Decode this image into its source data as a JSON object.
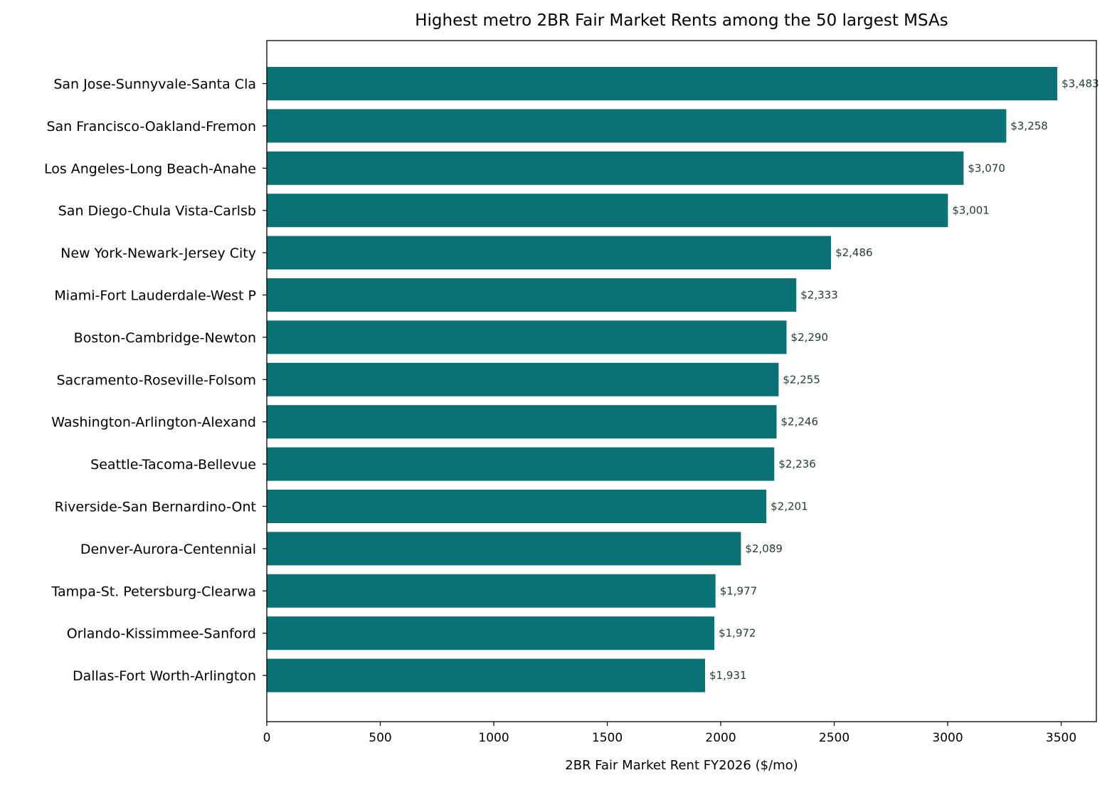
{
  "chart_data": {
    "type": "bar",
    "orientation": "horizontal",
    "title": "Highest metro 2BR Fair Market Rents among the 50 largest MSAs",
    "xlabel": "2BR Fair Market Rent FY2026 ($/mo)",
    "ylabel": "",
    "xlim": [
      0,
      3655
    ],
    "xticks": [
      0,
      500,
      1000,
      1500,
      2000,
      2500,
      3000,
      3500
    ],
    "bar_color": "#0a7175",
    "grid": false,
    "categories": [
      "San Jose-Sunnyvale-Santa Cla",
      "San Francisco-Oakland-Fremon",
      "Los Angeles-Long Beach-Anahe",
      "San Diego-Chula Vista-Carlsb",
      "New York-Newark-Jersey City",
      "Miami-Fort Lauderdale-West P",
      "Boston-Cambridge-Newton",
      "Sacramento-Roseville-Folsom",
      "Washington-Arlington-Alexand",
      "Seattle-Tacoma-Bellevue",
      "Riverside-San Bernardino-Ont",
      "Denver-Aurora-Centennial",
      "Tampa-St. Petersburg-Clearwa",
      "Orlando-Kissimmee-Sanford",
      "Dallas-Fort Worth-Arlington"
    ],
    "values": [
      3483,
      3258,
      3070,
      3001,
      2486,
      2333,
      2290,
      2255,
      2246,
      2236,
      2201,
      2089,
      1977,
      1972,
      1931
    ],
    "value_labels": [
      "$3,483",
      "$3,258",
      "$3,070",
      "$3,001",
      "$2,486",
      "$2,333",
      "$2,290",
      "$2,255",
      "$2,246",
      "$2,236",
      "$2,201",
      "$2,089",
      "$1,977",
      "$1,972",
      "$1,931"
    ]
  }
}
